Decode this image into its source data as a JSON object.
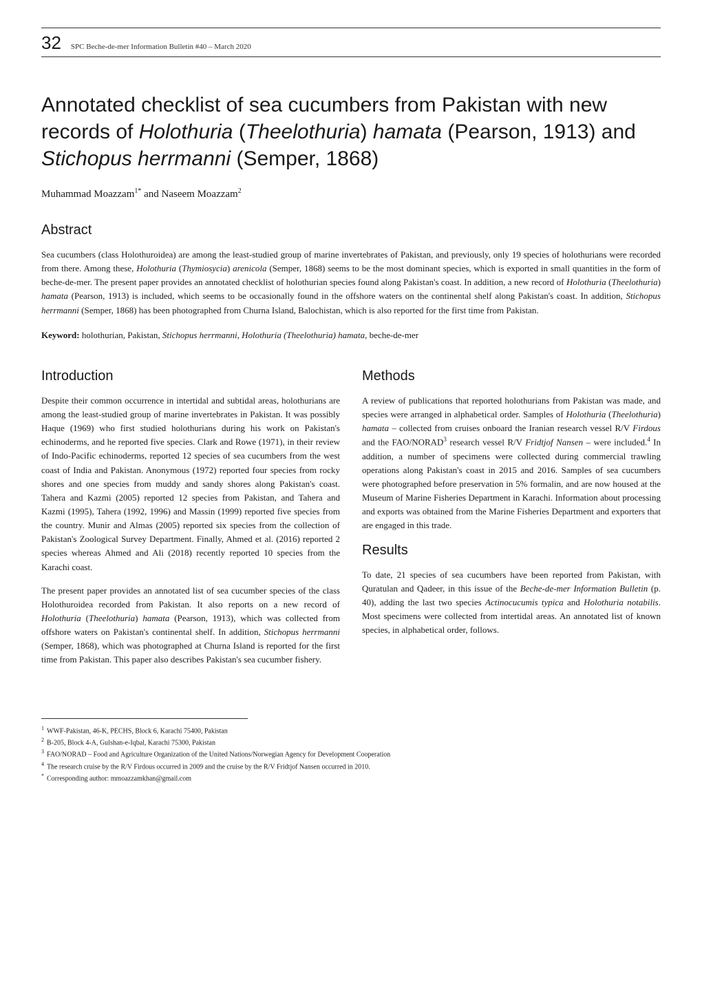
{
  "header": {
    "page_number": "32",
    "running_title": "SPC Beche-de-mer Information Bulletin #40 – March 2020"
  },
  "title": {
    "parts": [
      {
        "text": "Annotated checklist of sea cucumbers from Pakistan with new records of ",
        "italic": false
      },
      {
        "text": "Holothuria",
        "italic": true
      },
      {
        "text": " (",
        "italic": false
      },
      {
        "text": "Theelothuria",
        "italic": true
      },
      {
        "text": ") ",
        "italic": false
      },
      {
        "text": "hamata",
        "italic": true
      },
      {
        "text": " (Pearson, 1913) and ",
        "italic": false
      },
      {
        "text": "Stichopus herrmanni",
        "italic": true
      },
      {
        "text": " (Semper, 1868)",
        "italic": false
      }
    ]
  },
  "authors": {
    "parts": [
      {
        "text": "Muhammad Moazzam",
        "sup": "1*"
      },
      {
        "text": " and Naseem Moazzam",
        "sup": "2"
      }
    ]
  },
  "abstract": {
    "heading": "Abstract",
    "body_parts": [
      {
        "text": "Sea cucumbers (class Holothuroidea) are among the least-studied group of marine invertebrates of Pakistan, and previously, only 19 species of holothurians were recorded from there. Among these, ",
        "italic": false
      },
      {
        "text": "Holothuria",
        "italic": true
      },
      {
        "text": " (",
        "italic": false
      },
      {
        "text": "Thymiosycia",
        "italic": true
      },
      {
        "text": ") ",
        "italic": false
      },
      {
        "text": "arenicola",
        "italic": true
      },
      {
        "text": " (Semper, 1868) seems to be the most dominant species, which is exported in small quantities in the form of beche-de-mer. The present paper provides an annotated checklist of holothurian species found along Pakistan's coast. In addition, a new record of ",
        "italic": false
      },
      {
        "text": "Holothuria",
        "italic": true
      },
      {
        "text": " (",
        "italic": false
      },
      {
        "text": "Theelothuria",
        "italic": true
      },
      {
        "text": ") ",
        "italic": false
      },
      {
        "text": "hamata",
        "italic": true
      },
      {
        "text": " (Pearson, 1913) is included, which seems to be occasionally found in the offshore waters on the continental shelf along Pakistan's coast. In addition, ",
        "italic": false
      },
      {
        "text": "Stichopus herrmanni",
        "italic": true
      },
      {
        "text": " (Semper, 1868) has been photographed from Churna Island, Balochistan, which is also reported for the first time from Pakistan.",
        "italic": false
      }
    ],
    "keyword_label": "Keyword:",
    "keyword_parts": [
      {
        "text": " holothurian, Pakistan, ",
        "italic": false
      },
      {
        "text": "Stichopus herrmanni",
        "italic": true
      },
      {
        "text": ", ",
        "italic": false
      },
      {
        "text": "Holothuria (Theelothuria) hamata",
        "italic": true
      },
      {
        "text": ", beche-de-mer",
        "italic": false
      }
    ]
  },
  "left_column": {
    "intro_heading": "Introduction",
    "intro_p1_parts": [
      {
        "text": "Despite their common occurrence in intertidal and subtidal areas, holothurians are among the least-studied group of marine invertebrates in Pakistan. It was possibly Haque (1969) who first studied holothurians during his work on Pakistan's echinoderms, and he reported five species. Clark and Rowe (1971), in their review of Indo-Pacific echinoderms, reported 12 species of sea cucumbers from the west coast of India and Pakistan. Anonymous (1972) reported four species from rocky shores and one species from muddy and sandy shores along Pakistan's coast. Tahera and Kazmi (2005) reported 12 species from Pakistan, and Tahera and Kazmi (1995), Tahera (1992, 1996) and Massin (1999) reported five species from the country. Munir and Almas (2005) reported six species from the collection of Pakistan's Zoological Survey Department. Finally, Ahmed et al. (2016) reported 2 species whereas Ahmed and Ali (2018) recently reported 10 species from the Karachi coast.",
        "italic": false
      }
    ],
    "intro_p2_parts": [
      {
        "text": "The present paper provides an annotated list of sea cucumber species of the class Holothuroidea recorded from Pakistan. It also reports on a new record of ",
        "italic": false
      },
      {
        "text": "Holothuria",
        "italic": true
      },
      {
        "text": " (",
        "italic": false
      },
      {
        "text": "Theelothuria",
        "italic": true
      },
      {
        "text": ") ",
        "italic": false
      },
      {
        "text": "hamata",
        "italic": true
      },
      {
        "text": " (Pearson, 1913), which was collected from offshore waters on Pakistan's continental shelf. In addition, ",
        "italic": false
      },
      {
        "text": "Stichopus herrmanni",
        "italic": true
      },
      {
        "text": " (Semper, 1868), which was photographed at Churna Island is reported for the first time from Pakistan. This paper also describes Pakistan's sea cucumber fishery.",
        "italic": false
      }
    ]
  },
  "right_column": {
    "methods_heading": "Methods",
    "methods_p1_parts": [
      {
        "text": "A review of publications that reported holothurians from Pakistan was made, and species were arranged in alphabetical order. Samples of ",
        "italic": false
      },
      {
        "text": "Holothuria",
        "italic": true
      },
      {
        "text": " (",
        "italic": false
      },
      {
        "text": "Theelothuria",
        "italic": true
      },
      {
        "text": ") ",
        "italic": false
      },
      {
        "text": "hamata",
        "italic": true
      },
      {
        "text": " – collected from cruises onboard the Iranian research vessel R/V ",
        "italic": false
      },
      {
        "text": "Firdous",
        "italic": true
      },
      {
        "text": " and the FAO/NORAD",
        "italic": false,
        "sup": "3"
      },
      {
        "text": " research vessel R/V ",
        "italic": false
      },
      {
        "text": "Fridtjof Nansen",
        "italic": true
      },
      {
        "text": " – were included.",
        "italic": false,
        "sup": "4"
      },
      {
        "text": " In addition, a number of specimens were collected during commercial trawling operations along Pakistan's coast in 2015 and 2016. Samples of sea cucumbers were photographed before preservation in 5% formalin, and are now housed at the Museum of Marine Fisheries Department in Karachi. Information about processing and exports was obtained from the Marine Fisheries Department and exporters that are engaged in this trade.",
        "italic": false
      }
    ],
    "results_heading": "Results",
    "results_p1_parts": [
      {
        "text": "To date, 21 species of sea cucumbers have been reported from Pakistan, with Quratulan and Qadeer, in this issue of the ",
        "italic": false
      },
      {
        "text": "Beche-de-mer Information Bulletin",
        "italic": true
      },
      {
        "text": " (p. 40), adding the last two species ",
        "italic": false
      },
      {
        "text": "Actinocucumis typica",
        "italic": true
      },
      {
        "text": " and ",
        "italic": false
      },
      {
        "text": "Holothuria notabilis",
        "italic": true
      },
      {
        "text": ". Most specimens were collected from intertidal areas. An annotated list of known species, in alphabetical order, follows.",
        "italic": false
      }
    ]
  },
  "footnotes": [
    {
      "marker": "1",
      "text": "WWF-Pakistan, 46-K, PECHS, Block 6, Karachi 75400, Pakistan"
    },
    {
      "marker": "2",
      "text": "B-205, Block 4-A, Gulshan-e-Iqbal, Karachi 75300, Pakistan"
    },
    {
      "marker": "3",
      "text": "FAO/NORAD – Food and Agriculture Organization of the United Nations/Norwegian Agency for Development Cooperation"
    },
    {
      "marker": "4",
      "text": "The research cruise by the R/V Firdous occurred in 2009 and the cruise by the R/V Fridtjof Nansen occurred in 2010."
    },
    {
      "marker": "*",
      "text": "Corresponding author: mmoazzamkhan@gmail.com"
    }
  ],
  "style": {
    "page_bg": "#ffffff",
    "text_color": "#1a1a1a",
    "rule_color": "#333333",
    "body_font": "Georgia, 'Times New Roman', serif",
    "heading_font": "'Helvetica Neue', Arial, sans-serif",
    "title_fontsize": 30,
    "section_fontsize": 20,
    "body_fontsize": 13,
    "footnote_fontsize": 10,
    "page_number_fontsize": 26,
    "running_title_fontsize": 11
  }
}
